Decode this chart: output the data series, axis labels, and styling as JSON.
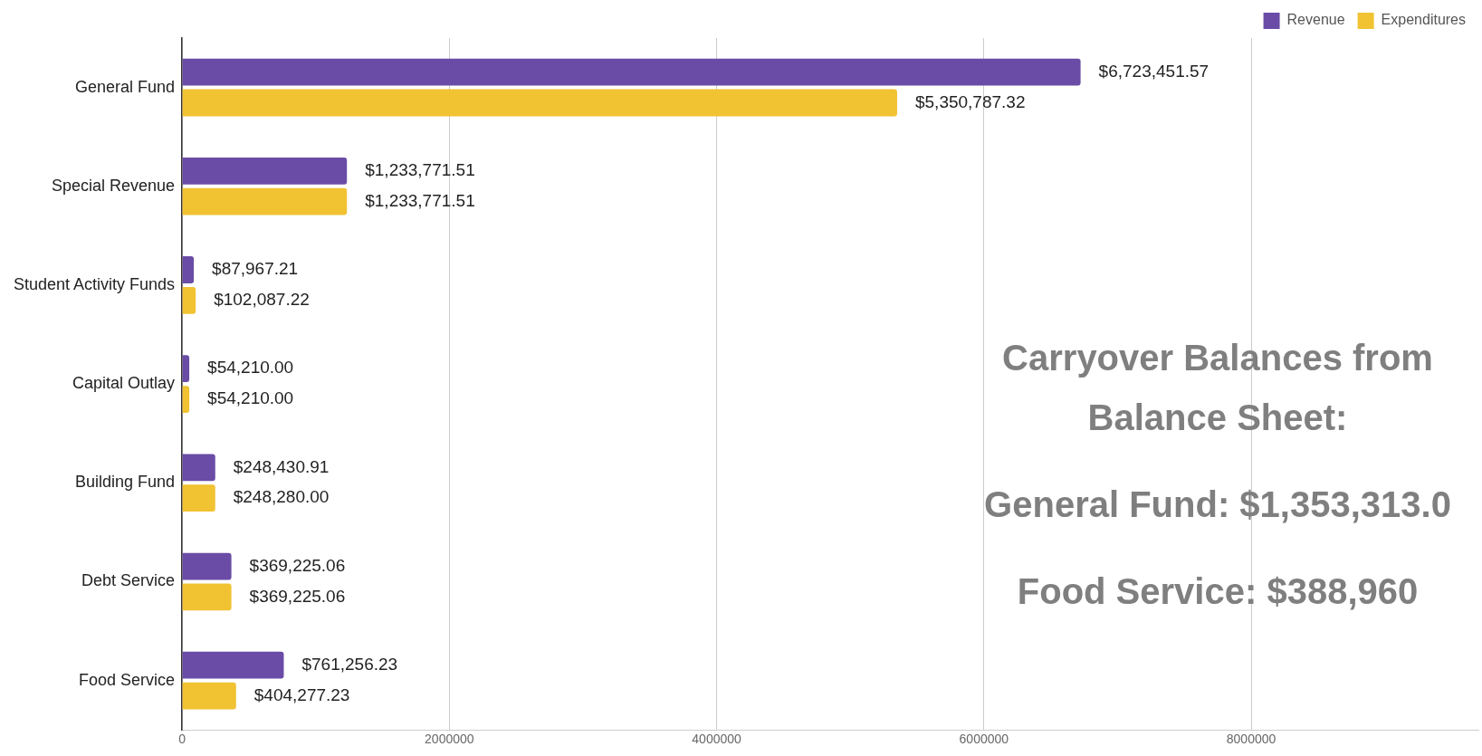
{
  "chart_data": {
    "type": "bar",
    "orientation": "horizontal",
    "categories": [
      "General Fund",
      "Special Revenue",
      "Student Activity Funds",
      "Capital Outlay",
      "Building Fund",
      "Debt Service",
      "Food Service"
    ],
    "series": [
      {
        "name": "Revenue",
        "color": "#6a4ca6",
        "values": [
          6723451.57,
          1233771.51,
          87967.21,
          54210.0,
          248430.91,
          369225.06,
          761256.23
        ],
        "value_labels": [
          "$6,723,451.57",
          "$1,233,771.51",
          "$87,967.21",
          "$54,210.00",
          "$248,430.91",
          "$369,225.06",
          "$761,256.23"
        ]
      },
      {
        "name": "Expenditures",
        "color": "#f1c232",
        "values": [
          5350787.32,
          1233771.51,
          102087.22,
          54210.0,
          248280.0,
          369225.06,
          404277.23
        ],
        "value_labels": [
          "$5,350,787.32",
          "$1,233,771.51",
          "$102,087.22",
          "$54,210.00",
          "$248,280.00",
          "$369,225.06",
          "$404,277.23"
        ]
      }
    ],
    "xlim": [
      0,
      9700000
    ],
    "xticks": [
      0,
      2000000,
      4000000,
      6000000,
      8000000
    ],
    "grid": "x",
    "legend": "top right",
    "annotations": [
      "Carryover Balances from Balance Sheet:",
      "General Fund: $1,353,313.0",
      "Food Service: $388,960"
    ]
  }
}
